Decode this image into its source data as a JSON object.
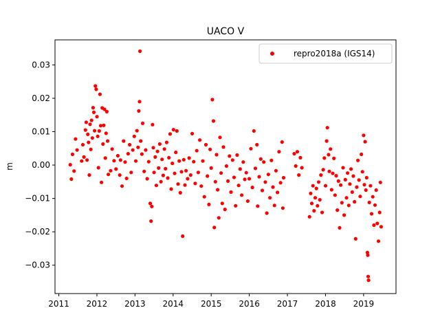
{
  "chart_data": {
    "type": "scatter",
    "title": "UACO V",
    "xlabel": "",
    "ylabel": "m",
    "xlim": [
      2010.9,
      2019.85
    ],
    "ylim": [
      -0.0385,
      0.0375
    ],
    "xticks": [
      2011,
      2012,
      2013,
      2014,
      2015,
      2016,
      2017,
      2018,
      2019
    ],
    "xtick_labels": [
      "2011",
      "2012",
      "2013",
      "2014",
      "2015",
      "2016",
      "2017",
      "2018",
      "2019"
    ],
    "yticks": [
      0.03,
      0.02,
      0.01,
      0.0,
      -0.01,
      -0.02,
      -0.03
    ],
    "ytick_labels": [
      "0.03",
      "0.02",
      "0.01",
      "0.00",
      "−0.01",
      "−0.02",
      "−0.03"
    ],
    "grid": false,
    "legend": {
      "position": "top-right",
      "entries": [
        "repro2018a (IGS14)"
      ]
    },
    "series": [
      {
        "name": "repro2018a (IGS14)",
        "color": "#ff0000",
        "marker": "circle",
        "points": [
          [
            2011.3,
            0.0001
          ],
          [
            2011.33,
            -0.0042
          ],
          [
            2011.36,
            0.0032
          ],
          [
            2011.4,
            -0.0018
          ],
          [
            2011.44,
            0.0078
          ],
          [
            2011.48,
            0.0045
          ],
          [
            2011.6,
            0.0012
          ],
          [
            2011.63,
            0.0061
          ],
          [
            2011.66,
            0.0024
          ],
          [
            2011.7,
            0.0105
          ],
          [
            2011.72,
            0.0128
          ],
          [
            2011.74,
            0.0015
          ],
          [
            2011.76,
            0.0092
          ],
          [
            2011.78,
            0.0068
          ],
          [
            2011.8,
            -0.003
          ],
          [
            2011.82,
            0.0122
          ],
          [
            2011.84,
            0.0047
          ],
          [
            2011.86,
            0.0134
          ],
          [
            2011.88,
            0.0081
          ],
          [
            2011.9,
            0.0172
          ],
          [
            2011.92,
            0.0158
          ],
          [
            2011.94,
            0.0103
          ],
          [
            2011.96,
            0.0237
          ],
          [
            2011.98,
            0.0227
          ],
          [
            2012.0,
            0.0145
          ],
          [
            2012.02,
            0.0086
          ],
          [
            2012.04,
            -0.0008
          ],
          [
            2012.06,
            0.0102
          ],
          [
            2012.08,
            0.0212
          ],
          [
            2012.1,
            0.0118
          ],
          [
            2012.12,
            -0.0052
          ],
          [
            2012.14,
            0.0171
          ],
          [
            2012.16,
            0.0063
          ],
          [
            2012.18,
            0.0119
          ],
          [
            2012.2,
            0.0167
          ],
          [
            2012.22,
            0.0021
          ],
          [
            2012.24,
            0.0095
          ],
          [
            2012.26,
            0.016
          ],
          [
            2012.28,
            0.0072
          ],
          [
            2012.3,
            -0.0028
          ],
          [
            2012.36,
            -0.0017
          ],
          [
            2012.4,
            0.0048
          ],
          [
            2012.45,
            0.0013
          ],
          [
            2012.5,
            -0.0012
          ],
          [
            2012.55,
            0.0028
          ],
          [
            2012.6,
            -0.003
          ],
          [
            2012.62,
            0.0015
          ],
          [
            2012.66,
            -0.0063
          ],
          [
            2012.7,
            0.0072
          ],
          [
            2012.74,
            0.0009
          ],
          [
            2012.78,
            -0.004
          ],
          [
            2012.82,
            0.0034
          ],
          [
            2012.86,
            0.0061
          ],
          [
            2012.9,
            -0.0022
          ],
          [
            2012.94,
            0.0045
          ],
          [
            2012.98,
            0.0086
          ],
          [
            2013.02,
            0.0012
          ],
          [
            2013.05,
            0.0103
          ],
          [
            2013.08,
            0.0053
          ],
          [
            2013.1,
            0.0162
          ],
          [
            2013.12,
            0.019
          ],
          [
            2013.13,
            0.0341
          ],
          [
            2013.15,
            0.0072
          ],
          [
            2013.18,
            0.0033
          ],
          [
            2013.2,
            0.0125
          ],
          [
            2013.24,
            -0.0019
          ],
          [
            2013.28,
            0.0045
          ],
          [
            2013.32,
            -0.0041
          ],
          [
            2013.36,
            0.001
          ],
          [
            2013.4,
            -0.0115
          ],
          [
            2013.42,
            -0.0168
          ],
          [
            2013.44,
            -0.0124
          ],
          [
            2013.46,
            0.0121
          ],
          [
            2013.48,
            0.0052
          ],
          [
            2013.5,
            -0.0022
          ],
          [
            2013.53,
            0.0024
          ],
          [
            2013.56,
            -0.0061
          ],
          [
            2013.59,
            0.0041
          ],
          [
            2013.62,
            -0.0009
          ],
          [
            2013.65,
            0.0063
          ],
          [
            2013.68,
            -0.005
          ],
          [
            2013.71,
            0.0017
          ],
          [
            2013.74,
            -0.0031
          ],
          [
            2013.77,
            0.0048
          ],
          [
            2013.8,
            -0.0011
          ],
          [
            2013.83,
            0.0068
          ],
          [
            2013.86,
            -0.0039
          ],
          [
            2013.89,
            0.0022
          ],
          [
            2013.92,
            0.0093
          ],
          [
            2013.95,
            -0.0072
          ],
          [
            2013.98,
            0.0005
          ],
          [
            2014.01,
            0.0106
          ],
          [
            2014.04,
            -0.0025
          ],
          [
            2014.07,
            0.0038
          ],
          [
            2014.1,
            0.0102
          ],
          [
            2014.13,
            -0.0057
          ],
          [
            2014.16,
            0.0012
          ],
          [
            2014.19,
            -0.0083
          ],
          [
            2014.22,
            -0.002
          ],
          [
            2014.25,
            -0.0213
          ],
          [
            2014.28,
            0.0016
          ],
          [
            2014.31,
            -0.006
          ],
          [
            2014.34,
            -0.0017
          ],
          [
            2014.38,
            -0.0041
          ],
          [
            2014.42,
            0.0021
          ],
          [
            2014.46,
            -0.003
          ],
          [
            2014.5,
            0.0094
          ],
          [
            2014.54,
            0.001
          ],
          [
            2014.58,
            -0.0055
          ],
          [
            2014.62,
            0.0043
          ],
          [
            2014.66,
            -0.0022
          ],
          [
            2014.7,
            0.0075
          ],
          [
            2014.74,
            -0.0063
          ],
          [
            2014.78,
            0.0012
          ],
          [
            2014.82,
            -0.0095
          ],
          [
            2014.86,
            0.0061
          ],
          [
            2014.9,
            -0.0033
          ],
          [
            2014.94,
            -0.0118
          ],
          [
            2014.97,
            0.0047
          ],
          [
            2015.0,
            -0.0009
          ],
          [
            2015.03,
            0.0196
          ],
          [
            2015.06,
            0.0132
          ],
          [
            2015.08,
            -0.0187
          ],
          [
            2015.11,
            -0.005
          ],
          [
            2015.14,
            0.0031
          ],
          [
            2015.17,
            -0.0074
          ],
          [
            2015.2,
            -0.0158
          ],
          [
            2015.23,
            0.0083
          ],
          [
            2015.26,
            -0.0024
          ],
          [
            2015.29,
            -0.0115
          ],
          [
            2015.32,
            0.0054
          ],
          [
            2015.36,
            -0.0133
          ],
          [
            2015.4,
            -0.0003
          ],
          [
            2015.44,
            -0.0048
          ],
          [
            2015.48,
            0.0027
          ],
          [
            2015.52,
            -0.0081
          ],
          [
            2015.56,
            0.0015
          ],
          [
            2015.6,
            -0.0037
          ],
          [
            2015.64,
            -0.0122
          ],
          [
            2015.68,
            0.003
          ],
          [
            2015.72,
            -0.0061
          ],
          [
            2015.76,
            -0.0012
          ],
          [
            2015.8,
            -0.009
          ],
          [
            2015.84,
            0.0009
          ],
          [
            2015.88,
            -0.0043
          ],
          [
            2015.92,
            -0.0023
          ],
          [
            2015.96,
            -0.0108
          ],
          [
            2016.0,
            -0.0041
          ],
          [
            2016.04,
            0.0049
          ],
          [
            2016.08,
            -0.0067
          ],
          [
            2016.12,
            0.0102
          ],
          [
            2016.16,
            -0.001
          ],
          [
            2016.2,
            0.0061
          ],
          [
            2016.22,
            -0.0123
          ],
          [
            2016.26,
            -0.0035
          ],
          [
            2016.3,
            0.0018
          ],
          [
            2016.34,
            -0.0076
          ],
          [
            2016.38,
            0.0009
          ],
          [
            2016.42,
            -0.0051
          ],
          [
            2016.46,
            -0.0144
          ],
          [
            2016.5,
            -0.0028
          ],
          [
            2016.54,
            -0.0098
          ],
          [
            2016.58,
            0.0014
          ],
          [
            2016.62,
            -0.0066
          ],
          [
            2016.66,
            -0.0121
          ],
          [
            2016.7,
            -0.0017
          ],
          [
            2016.74,
            -0.0082
          ],
          [
            2016.78,
            0.004
          ],
          [
            2016.82,
            -0.0053
          ],
          [
            2016.86,
            0.0069
          ],
          [
            2016.88,
            -0.0129
          ],
          [
            2016.9,
            -0.0038
          ],
          [
            2017.18,
            0.0034
          ],
          [
            2017.22,
            -0.0003
          ],
          [
            2017.26,
            0.004
          ],
          [
            2017.3,
            -0.003
          ],
          [
            2017.34,
            0.0022
          ],
          [
            2017.38,
            -0.0008
          ],
          [
            2017.58,
            -0.0155
          ],
          [
            2017.61,
            -0.0085
          ],
          [
            2017.64,
            -0.0115
          ],
          [
            2017.67,
            -0.0062
          ],
          [
            2017.7,
            -0.0137
          ],
          [
            2017.73,
            -0.0098
          ],
          [
            2017.76,
            -0.007
          ],
          [
            2017.79,
            -0.0122
          ],
          [
            2017.82,
            -0.0051
          ],
          [
            2017.85,
            -0.0104
          ],
          [
            2017.88,
            -0.003
          ],
          [
            2017.91,
            -0.0142
          ],
          [
            2017.94,
            -0.0014
          ],
          [
            2017.97,
            0.0021
          ],
          [
            2018.0,
            -0.0062
          ],
          [
            2018.03,
            0.0072
          ],
          [
            2018.05,
            0.0112
          ],
          [
            2018.08,
            0.0031
          ],
          [
            2018.1,
            -0.0019
          ],
          [
            2018.13,
            0.0048
          ],
          [
            2018.16,
            -0.0074
          ],
          [
            2018.19,
            -0.0025
          ],
          [
            2018.22,
            0.002
          ],
          [
            2018.25,
            -0.009
          ],
          [
            2018.28,
            -0.0032
          ],
          [
            2018.31,
            -0.0135
          ],
          [
            2018.34,
            -0.0048
          ],
          [
            2018.37,
            -0.0188
          ],
          [
            2018.4,
            -0.006
          ],
          [
            2018.43,
            -0.0113
          ],
          [
            2018.46,
            -0.0008
          ],
          [
            2018.49,
            -0.015
          ],
          [
            2018.52,
            -0.0044
          ],
          [
            2018.55,
            -0.0098
          ],
          [
            2018.58,
            -0.0024
          ],
          [
            2018.61,
            -0.0121
          ],
          [
            2018.64,
            -0.0057
          ],
          [
            2018.67,
            -0.0012
          ],
          [
            2018.7,
            -0.0081
          ],
          [
            2018.73,
            -0.0033
          ],
          [
            2018.76,
            -0.011
          ],
          [
            2018.79,
            -0.0221
          ],
          [
            2018.82,
            -0.0066
          ],
          [
            2018.85,
            0.0014
          ],
          [
            2018.88,
            -0.0045
          ],
          [
            2018.91,
            -0.0094
          ],
          [
            2018.94,
            0.0032
          ],
          [
            2018.97,
            -0.002
          ],
          [
            2019.0,
            0.0089
          ],
          [
            2019.02,
            -0.0059
          ],
          [
            2019.04,
            0.007
          ],
          [
            2019.06,
            -0.0075
          ],
          [
            2019.08,
            -0.0038
          ],
          [
            2019.1,
            -0.0262
          ],
          [
            2019.11,
            -0.027
          ],
          [
            2019.12,
            -0.0334
          ],
          [
            2019.13,
            -0.0345
          ],
          [
            2019.15,
            -0.0112
          ],
          [
            2019.18,
            -0.0062
          ],
          [
            2019.21,
            -0.0146
          ],
          [
            2019.24,
            -0.0095
          ],
          [
            2019.27,
            -0.018
          ],
          [
            2019.3,
            -0.012
          ],
          [
            2019.33,
            -0.0075
          ],
          [
            2019.36,
            -0.0175
          ],
          [
            2019.39,
            -0.0228
          ],
          [
            2019.42,
            -0.0142
          ],
          [
            2019.44,
            -0.0052
          ],
          [
            2019.46,
            -0.0185
          ]
        ]
      }
    ]
  }
}
